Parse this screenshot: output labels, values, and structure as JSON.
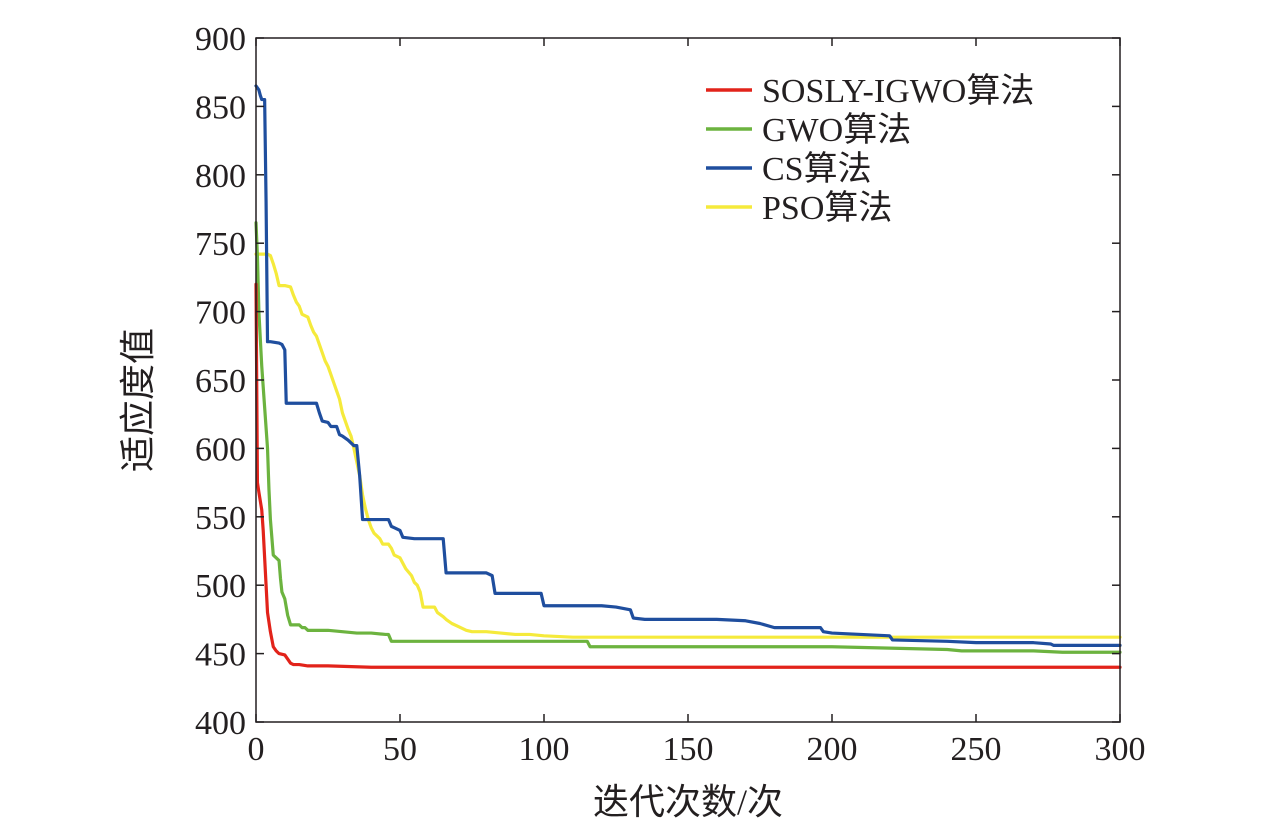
{
  "chart_data": {
    "type": "line",
    "title": "",
    "xlabel": "迭代次数/次",
    "ylabel": "适应度值",
    "xlim": [
      0,
      300
    ],
    "ylim": [
      400,
      900
    ],
    "xticks": [
      0,
      50,
      100,
      150,
      200,
      250,
      300
    ],
    "yticks": [
      400,
      450,
      500,
      550,
      600,
      650,
      700,
      750,
      800,
      850,
      900
    ],
    "grid": false,
    "legend_position": "top-right",
    "series": [
      {
        "name": "SOSLY-IGWO算法",
        "color": "#e2231a",
        "points": [
          [
            0,
            720
          ],
          [
            0.5,
            575
          ],
          [
            1,
            568
          ],
          [
            2,
            555
          ],
          [
            2.5,
            540
          ],
          [
            3,
            520
          ],
          [
            3.5,
            500
          ],
          [
            4,
            480
          ],
          [
            5,
            466
          ],
          [
            6,
            455
          ],
          [
            7,
            452
          ],
          [
            8,
            450
          ],
          [
            10,
            449
          ],
          [
            11,
            446
          ],
          [
            12,
            443
          ],
          [
            13,
            442
          ],
          [
            15,
            442
          ],
          [
            18,
            441
          ],
          [
            25,
            441
          ],
          [
            40,
            440
          ],
          [
            100,
            440
          ],
          [
            200,
            440
          ],
          [
            300,
            440
          ]
        ]
      },
      {
        "name": "GWO算法",
        "color": "#6cb33f",
        "points": [
          [
            0,
            765
          ],
          [
            0.5,
            740
          ],
          [
            1,
            700
          ],
          [
            2,
            660
          ],
          [
            3,
            630
          ],
          [
            4,
            600
          ],
          [
            4.5,
            570
          ],
          [
            5,
            548
          ],
          [
            6,
            522
          ],
          [
            7,
            520
          ],
          [
            8,
            518
          ],
          [
            8.5,
            505
          ],
          [
            9,
            495
          ],
          [
            10,
            490
          ],
          [
            11,
            478
          ],
          [
            12,
            471
          ],
          [
            15,
            471
          ],
          [
            16,
            469
          ],
          [
            17,
            469
          ],
          [
            18,
            467
          ],
          [
            20,
            467
          ],
          [
            25,
            467
          ],
          [
            30,
            466
          ],
          [
            35,
            465
          ],
          [
            40,
            465
          ],
          [
            45,
            464
          ],
          [
            46,
            464
          ],
          [
            47,
            459
          ],
          [
            100,
            459
          ],
          [
            110,
            459
          ],
          [
            115,
            459
          ],
          [
            116,
            455
          ],
          [
            150,
            455
          ],
          [
            200,
            455
          ],
          [
            220,
            454
          ],
          [
            240,
            453
          ],
          [
            245,
            452
          ],
          [
            270,
            452
          ],
          [
            280,
            451
          ],
          [
            300,
            451
          ]
        ]
      },
      {
        "name": "CS算法",
        "color": "#1f4e9e",
        "points": [
          [
            0,
            865
          ],
          [
            1,
            862
          ],
          [
            1.5,
            858
          ],
          [
            2,
            855
          ],
          [
            3,
            855
          ],
          [
            3.5,
            780
          ],
          [
            4,
            678
          ],
          [
            5,
            678
          ],
          [
            8,
            677
          ],
          [
            9,
            676
          ],
          [
            10,
            672
          ],
          [
            10.5,
            633
          ],
          [
            15,
            633
          ],
          [
            20,
            633
          ],
          [
            21,
            633
          ],
          [
            22,
            626
          ],
          [
            23,
            620
          ],
          [
            25,
            619
          ],
          [
            26,
            616
          ],
          [
            28,
            616
          ],
          [
            29,
            610
          ],
          [
            30,
            609
          ],
          [
            32,
            606
          ],
          [
            34,
            602
          ],
          [
            35,
            602
          ],
          [
            36,
            580
          ],
          [
            37,
            548
          ],
          [
            40,
            548
          ],
          [
            46,
            548
          ],
          [
            47,
            543
          ],
          [
            48,
            542
          ],
          [
            49,
            541
          ],
          [
            50,
            540
          ],
          [
            51,
            535
          ],
          [
            55,
            534
          ],
          [
            60,
            534
          ],
          [
            65,
            534
          ],
          [
            66,
            509
          ],
          [
            75,
            509
          ],
          [
            80,
            509
          ],
          [
            82,
            507
          ],
          [
            83,
            494
          ],
          [
            90,
            494
          ],
          [
            99,
            494
          ],
          [
            100,
            485
          ],
          [
            110,
            485
          ],
          [
            120,
            485
          ],
          [
            125,
            484
          ],
          [
            130,
            482
          ],
          [
            131,
            476
          ],
          [
            135,
            475
          ],
          [
            145,
            475
          ],
          [
            160,
            475
          ],
          [
            170,
            474
          ],
          [
            175,
            472
          ],
          [
            180,
            469
          ],
          [
            190,
            469
          ],
          [
            196,
            469
          ],
          [
            197,
            466
          ],
          [
            200,
            465
          ],
          [
            210,
            464
          ],
          [
            220,
            463
          ],
          [
            221,
            460
          ],
          [
            240,
            459
          ],
          [
            250,
            458
          ],
          [
            270,
            458
          ],
          [
            276,
            457
          ],
          [
            277,
            456
          ],
          [
            290,
            456
          ],
          [
            300,
            456
          ]
        ]
      },
      {
        "name": "PSO算法",
        "color": "#f5ea3b",
        "points": [
          [
            0,
            742
          ],
          [
            2,
            742
          ],
          [
            3,
            742
          ],
          [
            4,
            742
          ],
          [
            5,
            741
          ],
          [
            6,
            735
          ],
          [
            7,
            728
          ],
          [
            8,
            719
          ],
          [
            10,
            719
          ],
          [
            12,
            718
          ],
          [
            13,
            712
          ],
          [
            14,
            707
          ],
          [
            15,
            704
          ],
          [
            16,
            698
          ],
          [
            18,
            696
          ],
          [
            19,
            690
          ],
          [
            20,
            685
          ],
          [
            21,
            682
          ],
          [
            22,
            676
          ],
          [
            23,
            670
          ],
          [
            24,
            664
          ],
          [
            25,
            660
          ],
          [
            26,
            654
          ],
          [
            27,
            648
          ],
          [
            28,
            642
          ],
          [
            29,
            636
          ],
          [
            30,
            626
          ],
          [
            31,
            620
          ],
          [
            32,
            614
          ],
          [
            33,
            609
          ],
          [
            34,
            600
          ],
          [
            35,
            590
          ],
          [
            36,
            580
          ],
          [
            37,
            566
          ],
          [
            38,
            556
          ],
          [
            39,
            548
          ],
          [
            40,
            542
          ],
          [
            41,
            538
          ],
          [
            42,
            536
          ],
          [
            43,
            534
          ],
          [
            44,
            530
          ],
          [
            46,
            530
          ],
          [
            47,
            527
          ],
          [
            48,
            522
          ],
          [
            50,
            520
          ],
          [
            52,
            512
          ],
          [
            54,
            507
          ],
          [
            55,
            502
          ],
          [
            56,
            500
          ],
          [
            57,
            495
          ],
          [
            58,
            484
          ],
          [
            60,
            484
          ],
          [
            62,
            484
          ],
          [
            63,
            480
          ],
          [
            65,
            477
          ],
          [
            66,
            475
          ],
          [
            68,
            472
          ],
          [
            70,
            470
          ],
          [
            72,
            468
          ],
          [
            73,
            467
          ],
          [
            75,
            466
          ],
          [
            80,
            466
          ],
          [
            85,
            465
          ],
          [
            90,
            464
          ],
          [
            95,
            464
          ],
          [
            100,
            463
          ],
          [
            110,
            462
          ],
          [
            150,
            462
          ],
          [
            200,
            462
          ],
          [
            250,
            462
          ],
          [
            300,
            462
          ]
        ]
      }
    ]
  }
}
